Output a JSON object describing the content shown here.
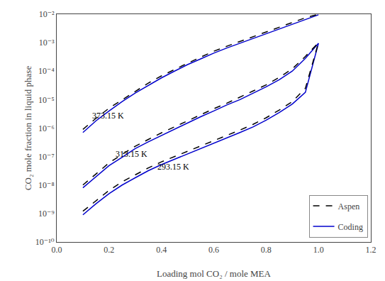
{
  "chart_data": {
    "type": "line",
    "xlabel": "Loading mol CO₂ / mole MEA",
    "ylabel": "CO₂ mole fraction in liquid phase",
    "log": "y",
    "grid": false,
    "legend": "lower right",
    "xlim": [
      0.0,
      1.2
    ],
    "xticks": [
      {
        "value": 0.0,
        "label": "0.0"
      },
      0.2,
      0.4,
      0.6,
      0.8,
      {
        "value": 1.0,
        "label": "1.0"
      },
      1.2
    ],
    "ylim": [
      1e-10,
      0.01
    ],
    "yticks": [
      {
        "value": 1e-10,
        "label": "10⁻¹⁰"
      },
      {
        "value": 1e-09,
        "label": "10⁻⁹"
      },
      {
        "value": 1e-08,
        "label": "10⁻⁸"
      },
      {
        "value": 1e-07,
        "label": "10⁻⁷"
      },
      {
        "value": 1e-06,
        "label": "10⁻⁶"
      },
      {
        "value": 1e-05,
        "label": "10⁻⁵"
      },
      {
        "value": 0.0001,
        "label": "10⁻⁴"
      },
      {
        "value": 0.001,
        "label": "10⁻³"
      },
      {
        "value": 0.01,
        "label": "10⁻²"
      }
    ],
    "annotations": [
      {
        "text": "373.15 K",
        "x": 0.13,
        "y": 2.8e-06
      },
      {
        "text": "313.15 K",
        "x": 0.22,
        "y": 1.2e-07
      },
      {
        "text": "293.15 K",
        "x": 0.38,
        "y": 4.5e-08
      }
    ],
    "series": [
      {
        "name": "Coding",
        "color": "#0000CC",
        "line_style": "solid",
        "x": [
          0.1,
          0.15,
          0.2,
          0.25,
          0.3,
          0.35,
          0.4,
          0.45,
          0.5,
          0.55,
          0.6,
          0.65,
          0.7,
          0.75,
          0.8,
          0.85,
          0.9,
          0.95,
          1.0
        ],
        "values": [
          9e-10,
          2.2e-09,
          5e-09,
          1e-08,
          1.8e-08,
          3.2e-08,
          5.2e-08,
          8e-08,
          1.2e-07,
          1.9e-07,
          2.9e-07,
          4.5e-07,
          7e-07,
          1.1e-06,
          1.9e-06,
          3.5e-06,
          7e-06,
          1.8e-05,
          0.00095
        ]
      },
      {
        "name": "Aspen",
        "color": "#000000",
        "line_style": "dash",
        "x": [
          0.1,
          0.15,
          0.2,
          0.25,
          0.3,
          0.35,
          0.4,
          0.45,
          0.5,
          0.55,
          0.6,
          0.65,
          0.7,
          0.75,
          0.8,
          0.85,
          0.9,
          0.95,
          1.0
        ],
        "values": [
          1.2e-09,
          2.8e-09,
          6.5e-09,
          1.3e-08,
          2.3e-08,
          4e-08,
          6.5e-08,
          1e-07,
          1.5e-07,
          2.3e-07,
          3.5e-07,
          5.5e-07,
          8.5e-07,
          1.35e-06,
          2.3e-06,
          4.3e-06,
          8.5e-06,
          2.5e-05,
          0.001
        ]
      },
      {
        "name": "Coding",
        "color": "#0000CC",
        "line_style": "solid",
        "x": [
          0.1,
          0.15,
          0.2,
          0.25,
          0.3,
          0.35,
          0.4,
          0.45,
          0.5,
          0.55,
          0.6,
          0.65,
          0.7,
          0.75,
          0.8,
          0.85,
          0.9,
          0.95,
          1.0
        ],
        "values": [
          8e-09,
          2e-08,
          4.8e-08,
          9.5e-08,
          1.9e-07,
          3.3e-07,
          5.5e-07,
          9e-07,
          1.5e-06,
          2.5e-06,
          4e-06,
          6.5e-06,
          1e-05,
          1.7e-05,
          2.8e-05,
          5e-05,
          0.0001,
          0.00028,
          0.00095
        ]
      },
      {
        "name": "Aspen",
        "color": "#000000",
        "line_style": "dash",
        "x": [
          0.1,
          0.15,
          0.2,
          0.25,
          0.3,
          0.35,
          0.4,
          0.45,
          0.5,
          0.55,
          0.6,
          0.65,
          0.7,
          0.75,
          0.8,
          0.85,
          0.9,
          0.95,
          1.0
        ],
        "values": [
          1e-08,
          2.5e-08,
          6e-08,
          1.2e-07,
          2.3e-07,
          4e-07,
          6.8e-07,
          1.1e-06,
          1.8e-06,
          3e-06,
          4.8e-06,
          7.5e-06,
          1.2e-05,
          2e-05,
          3.3e-05,
          6e-05,
          0.00012,
          0.00033,
          0.001
        ]
      },
      {
        "name": "Coding",
        "color": "#0000CC",
        "line_style": "solid",
        "x": [
          0.1,
          0.15,
          0.2,
          0.25,
          0.3,
          0.35,
          0.4,
          0.45,
          0.5,
          0.55,
          0.6,
          0.65,
          0.7,
          0.75,
          0.8,
          0.85,
          0.9,
          0.95,
          1.0
        ],
        "values": [
          7e-07,
          1.8e-06,
          4e-06,
          8.5e-06,
          1.7e-05,
          3.2e-05,
          5.8e-05,
          0.0001,
          0.00017,
          0.00027,
          0.00043,
          0.00065,
          0.00095,
          0.0014,
          0.0021,
          0.0031,
          0.0045,
          0.0065,
          0.0095
        ]
      },
      {
        "name": "Aspen",
        "color": "#000000",
        "line_style": "dash",
        "x": [
          0.1,
          0.15,
          0.2,
          0.25,
          0.3,
          0.35,
          0.4,
          0.45,
          0.5,
          0.55,
          0.6,
          0.65,
          0.7,
          0.75,
          0.8,
          0.85,
          0.9,
          0.95,
          1.0
        ],
        "values": [
          9e-07,
          2.2e-06,
          5e-06,
          1e-05,
          2e-05,
          3.8e-05,
          6.8e-05,
          0.000115,
          0.00019,
          0.00031,
          0.0005,
          0.00075,
          0.0011,
          0.0016,
          0.0024,
          0.0036,
          0.0052,
          0.0075,
          0.01
        ]
      }
    ]
  }
}
